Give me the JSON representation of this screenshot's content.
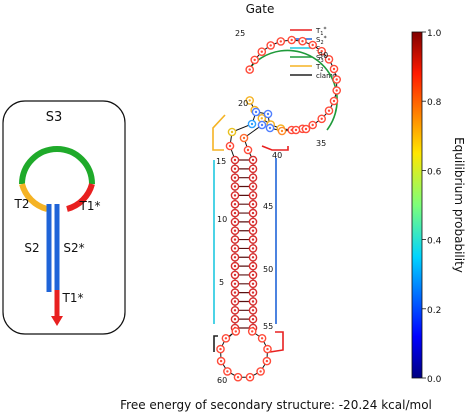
{
  "title": "Gate",
  "free_energy_label": "Free energy of secondary structure: -20.24 kcal/mol",
  "colorbar": {
    "label": "Equilibrium probability",
    "ticks": [
      "1.0",
      "0.8",
      "0.6",
      "0.4",
      "0.2",
      "0.0"
    ]
  },
  "legend": {
    "items": [
      {
        "label": "T",
        "sub": "1",
        "sup": "*",
        "color": "#e82020"
      },
      {
        "label": "S",
        "sub": "2",
        "sup": "*",
        "color": "#1f64d8"
      },
      {
        "label": "S",
        "sub": "2",
        "sup": "",
        "color": "#1fc8e0"
      },
      {
        "label": "S",
        "sub": "3",
        "sup": "",
        "color": "#1f9a3a"
      },
      {
        "label": "T",
        "sub": "2",
        "sup": "",
        "color": "#f5b324"
      },
      {
        "label": "clamp",
        "sub": "",
        "sup": "",
        "color": "#222222"
      }
    ]
  },
  "schematic": {
    "s3": "S3",
    "t2": "T2",
    "t1star": "T1*",
    "s2": "S2",
    "s2star": "S2*",
    "t1star_bottom": "T1*",
    "colors": {
      "s3": "#1faa2a",
      "t2": "#f5b324",
      "t1": "#e82020",
      "s2": "#1f64d8"
    }
  },
  "position_labels": [
    "25",
    "30",
    "20",
    "35",
    "15",
    "40",
    "10",
    "45",
    "5",
    "50",
    "55",
    "60"
  ]
}
